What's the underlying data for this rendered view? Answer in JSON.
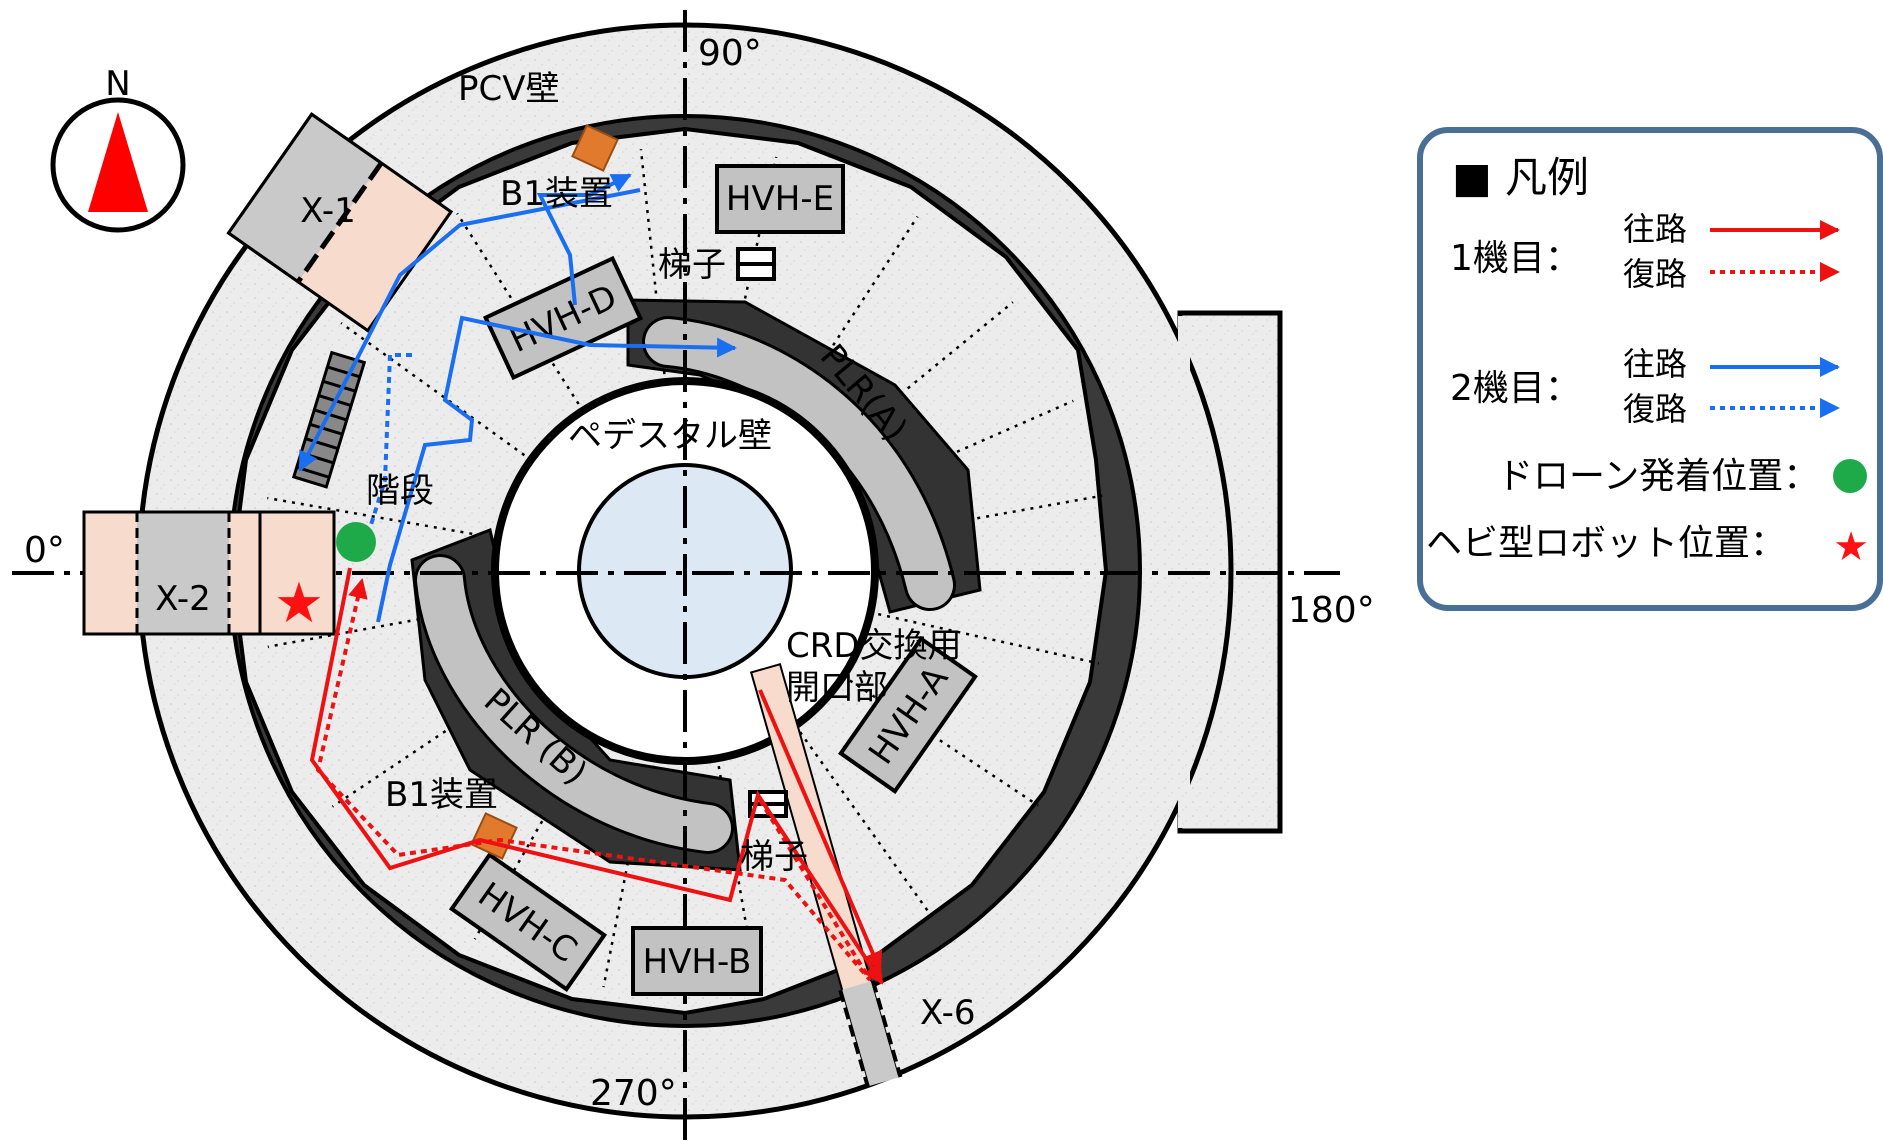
{
  "compass": {
    "label": "N"
  },
  "angles": {
    "deg0": "0°",
    "deg90": "90°",
    "deg180": "180°",
    "deg270": "270°"
  },
  "labels": {
    "pcv_wall": "PCV壁",
    "pedestal_wall": "ペデスタル壁",
    "b1_top": "B1装置",
    "b1_bottom": "B1装置",
    "ladder_top": "梯子",
    "ladder_bottom": "梯子",
    "stairs": "階段",
    "crd_1": "CRD交換用",
    "crd_2": "開口部",
    "hvh_a": "HVH-A",
    "hvh_b": "HVH-B",
    "hvh_c": "HVH-C",
    "hvh_d": "HVH-D",
    "hvh_e": "HVH-E",
    "plr_a": "PLR(A)",
    "plr_b": "PLR (B)",
    "x1": "X-1",
    "x2": "X-2",
    "x6": "X-6"
  },
  "legend": {
    "title": "■ 凡例",
    "unit1": "1機目：",
    "unit2": "2機目：",
    "outbound": "往路",
    "return": "復路",
    "drone": "ドローン発着位置：",
    "snake": "ヘビ型ロボット位置：",
    "snake_mark": "★"
  },
  "colors": {
    "unit1_route": "#ee1111",
    "unit2_route": "#1a6ff0",
    "drone_point": "#1faa4a",
    "snake_point": "#ff1111",
    "legend_border": "#4a6f94"
  }
}
